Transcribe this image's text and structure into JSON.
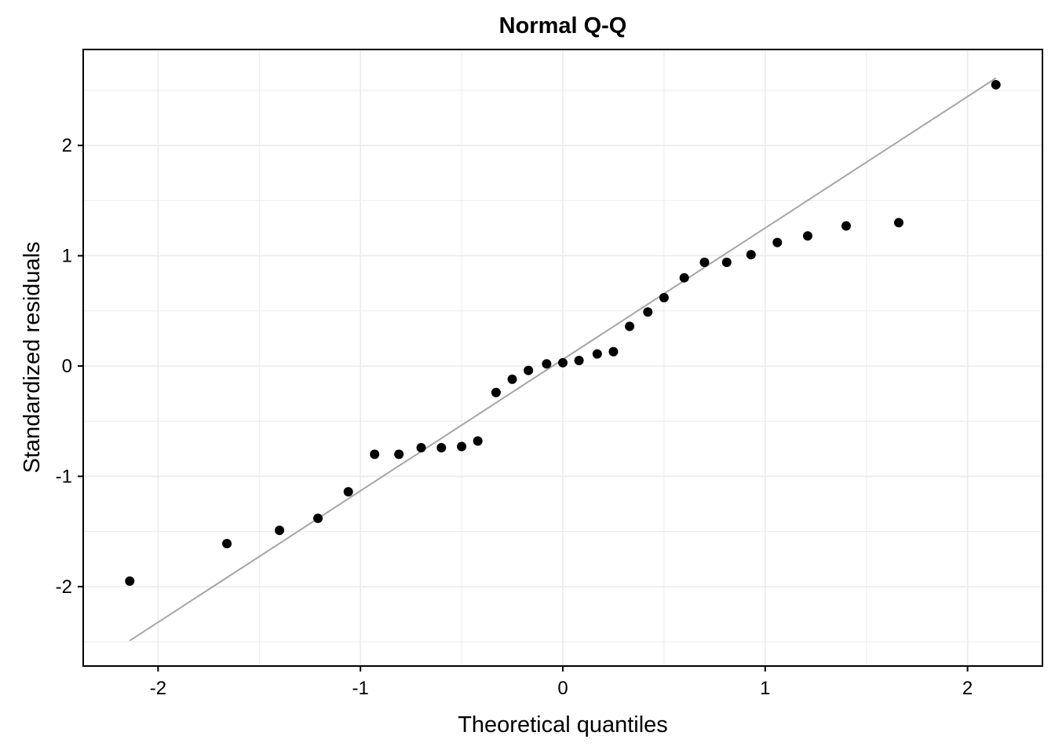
{
  "chart_data": {
    "type": "scatter",
    "title": "Normal Q-Q",
    "xlabel": "Theoretical quantiles",
    "ylabel": "Standardized residuals",
    "xlim": [
      -2.37,
      2.37
    ],
    "ylim": [
      -2.72,
      2.87
    ],
    "x_ticks": [
      -2,
      -1,
      0,
      1,
      2
    ],
    "x_tick_labels": [
      "-2",
      "-1",
      "0",
      "1",
      "2"
    ],
    "y_ticks": [
      -2,
      -1,
      0,
      1,
      2
    ],
    "y_tick_labels": [
      "-2",
      "-1",
      "0",
      "1",
      "2"
    ],
    "x_minor_ticks": [
      -1.5,
      -0.5,
      0.5,
      1.5
    ],
    "y_minor_ticks": [
      -2.5,
      -1.5,
      -0.5,
      0.5,
      1.5,
      2.5
    ],
    "grid": true,
    "legend": "none",
    "colors": {
      "points": "#000000",
      "reference_line": "#a6a6a6",
      "grid": "#ebebeb",
      "axis": "#000000"
    },
    "reference_line": {
      "x": [
        -2.14,
        2.14
      ],
      "y": [
        -2.49,
        2.61
      ]
    },
    "points": {
      "x": [
        -2.14,
        -1.66,
        -1.4,
        -1.21,
        -1.06,
        -0.93,
        -0.81,
        -0.7,
        -0.6,
        -0.5,
        -0.42,
        -0.33,
        -0.25,
        -0.17,
        -0.08,
        0.0,
        0.08,
        0.17,
        0.25,
        0.33,
        0.42,
        0.5,
        0.6,
        0.7,
        0.81,
        0.93,
        1.06,
        1.21,
        1.4,
        1.66,
        2.14
      ],
      "y": [
        -1.95,
        -1.61,
        -1.49,
        -1.38,
        -1.14,
        -0.8,
        -0.8,
        -0.74,
        -0.74,
        -0.73,
        -0.68,
        -0.24,
        -0.12,
        -0.04,
        0.02,
        0.03,
        0.05,
        0.11,
        0.13,
        0.36,
        0.49,
        0.62,
        0.8,
        0.94,
        0.94,
        1.01,
        1.12,
        1.18,
        1.27,
        1.3,
        2.55
      ]
    }
  }
}
